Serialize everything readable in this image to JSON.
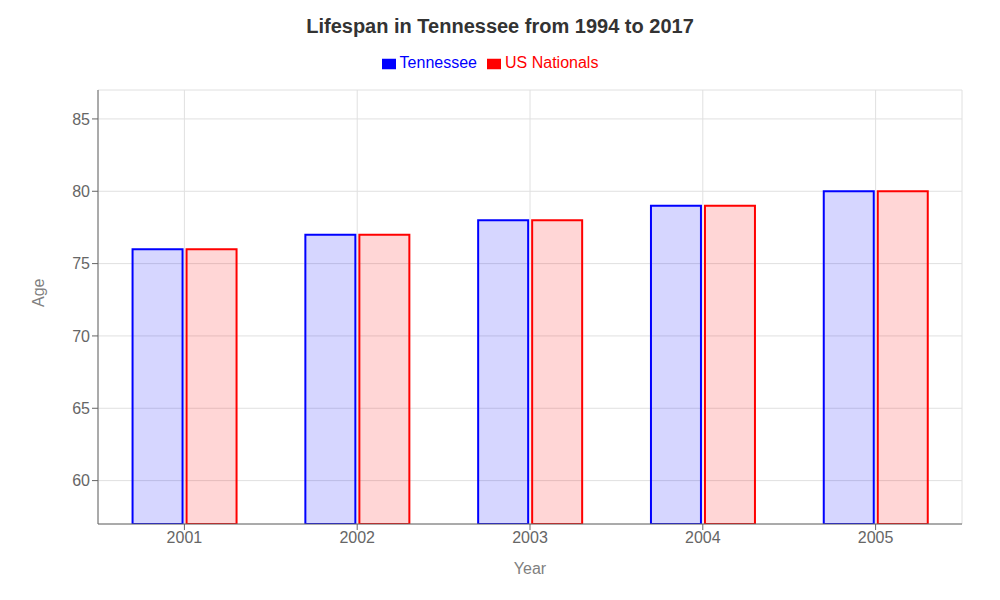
{
  "chart_data": {
    "type": "bar",
    "title": "Lifespan in Tennessee from 1994 to 2017",
    "xlabel": "Year",
    "ylabel": "Age",
    "categories": [
      "2001",
      "2002",
      "2003",
      "2004",
      "2005"
    ],
    "series": [
      {
        "name": "Tennessee",
        "color": "#0000ff",
        "values": [
          76,
          77,
          78,
          79,
          80
        ]
      },
      {
        "name": "US Nationals",
        "color": "#ff0000",
        "values": [
          76,
          77,
          78,
          79,
          80
        ]
      }
    ],
    "ylim": [
      57,
      87
    ],
    "yticks": [
      60,
      65,
      70,
      75,
      80,
      85
    ],
    "grid": true,
    "legend": "top"
  }
}
